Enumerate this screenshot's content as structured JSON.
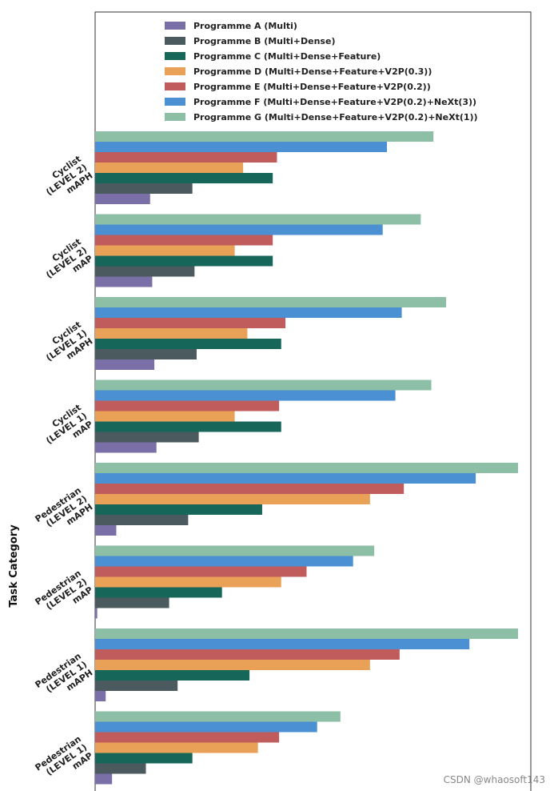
{
  "chart_data": {
    "type": "bar",
    "orientation": "horizontal",
    "ylabel": "Task Category",
    "xlabel": "",
    "xlim": [
      0,
      100
    ],
    "legend_position": "top",
    "categories": [
      [
        "Cyclist",
        "(LEVEL 2)",
        "mAPH"
      ],
      [
        "Cyclist",
        "(LEVEL 2)",
        "mAP"
      ],
      [
        "Cyclist",
        "(LEVEL 1)",
        "mAPH"
      ],
      [
        "Cyclist",
        "(LEVEL 1)",
        "mAP"
      ],
      [
        "Pedestrian",
        "(LEVEL 2)",
        "mAPH"
      ],
      [
        "Pedestrian",
        "(LEVEL 2)",
        "mAP"
      ],
      [
        "Pedestrian",
        "(LEVEL 1)",
        "mAPH"
      ],
      [
        "Pedestrian",
        "(LEVEL 1)",
        "mAP"
      ]
    ],
    "series": [
      {
        "name": "Programme A (Multi)",
        "color": "#7b6fa8",
        "values": [
          13,
          13.5,
          14,
          14.5,
          5,
          0.5,
          2.5,
          4
        ]
      },
      {
        "name": "Programme B (Multi+Dense)",
        "color": "#4b5a5e",
        "values": [
          23,
          23.5,
          24,
          24.5,
          22,
          17.5,
          19.5,
          12
        ]
      },
      {
        "name": "Programme C (Multi+Dense+Feature)",
        "color": "#17665a",
        "values": [
          42,
          42,
          44,
          44,
          39.5,
          30,
          36.5,
          23
        ]
      },
      {
        "name": "Programme D (Multi+Dense+Feature+V2P(0.3))",
        "color": "#e9a158",
        "values": [
          35,
          33,
          36,
          33,
          65,
          44,
          65,
          38.5
        ]
      },
      {
        "name": "Programme E (Multi+Dense+Feature+V2P(0.2))",
        "color": "#c05c5c",
        "values": [
          43,
          42,
          45,
          43.5,
          73,
          50,
          72,
          43.5
        ]
      },
      {
        "name": "Programme F (Multi+Dense+Feature+V2P(0.2)+NeXt(3))",
        "color": "#4a90d3",
        "values": [
          69,
          68,
          72.5,
          71,
          90,
          61,
          88.5,
          52.5
        ]
      },
      {
        "name": "Programme G (Multi+Dense+Feature+V2P(0.2)+NeXt(1))",
        "color": "#8dbfa6",
        "values": [
          80,
          77,
          83,
          79.5,
          100,
          66,
          100,
          58
        ]
      }
    ]
  },
  "watermark": "CSDN @whaosoft143"
}
